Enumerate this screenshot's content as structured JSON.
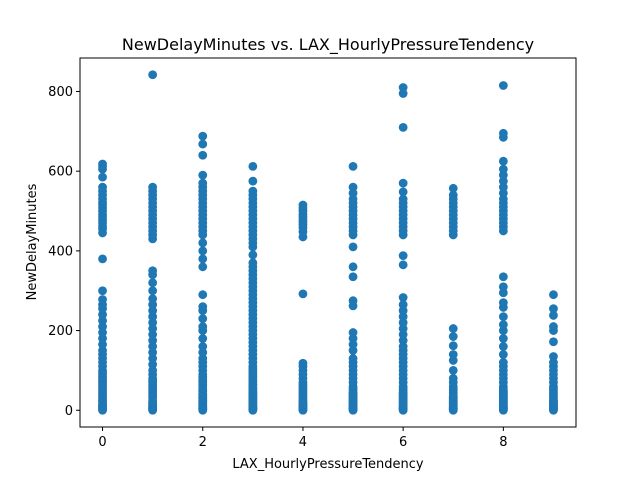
{
  "chart_data": {
    "type": "scatter",
    "title": "NewDelayMinutes vs. LAX_HourlyPressureTendency",
    "xlabel": "LAX_HourlyPressureTendency",
    "ylabel": "NewDelayMinutes",
    "xlim": [
      -0.45,
      9.45
    ],
    "ylim": [
      -42,
      884
    ],
    "xticks": [
      0,
      2,
      4,
      6,
      8
    ],
    "yticks": [
      0,
      200,
      400,
      600,
      800
    ],
    "grid": false,
    "marker_color": "#1f77b4",
    "x": [
      0,
      0,
      0,
      0,
      0,
      0,
      0,
      0,
      0,
      0,
      0,
      0,
      0,
      0,
      0,
      0,
      0,
      0,
      0,
      0,
      0,
      0,
      0,
      0,
      0,
      0,
      0,
      0,
      0,
      0,
      0,
      0,
      0,
      0,
      0,
      0,
      0,
      0,
      0,
      0,
      0,
      0,
      0,
      0,
      0,
      0,
      0,
      0,
      0,
      0,
      0,
      0,
      0,
      0,
      0,
      0,
      0,
      0,
      0,
      0,
      1,
      1,
      1,
      1,
      1,
      1,
      1,
      1,
      1,
      1,
      1,
      1,
      1,
      1,
      1,
      1,
      1,
      1,
      1,
      1,
      1,
      1,
      1,
      1,
      1,
      1,
      1,
      1,
      1,
      1,
      1,
      1,
      1,
      1,
      1,
      1,
      1,
      1,
      1,
      1,
      1,
      1,
      1,
      1,
      1,
      1,
      1,
      1,
      1,
      1,
      1,
      1,
      1,
      1,
      1,
      1,
      2,
      2,
      2,
      2,
      2,
      2,
      2,
      2,
      2,
      2,
      2,
      2,
      2,
      2,
      2,
      2,
      2,
      2,
      2,
      2,
      2,
      2,
      2,
      2,
      2,
      2,
      2,
      2,
      2,
      2,
      2,
      2,
      2,
      2,
      2,
      2,
      2,
      2,
      2,
      2,
      2,
      2,
      2,
      2,
      2,
      2,
      2,
      2,
      2,
      2,
      2,
      2,
      2,
      2,
      2,
      2,
      2,
      2,
      2,
      2,
      2,
      2,
      2,
      2,
      2,
      3,
      3,
      3,
      3,
      3,
      3,
      3,
      3,
      3,
      3,
      3,
      3,
      3,
      3,
      3,
      3,
      3,
      3,
      3,
      3,
      3,
      3,
      3,
      3,
      3,
      3,
      3,
      3,
      3,
      3,
      3,
      3,
      3,
      3,
      3,
      3,
      3,
      3,
      3,
      3,
      3,
      3,
      3,
      3,
      3,
      3,
      3,
      3,
      3,
      3,
      3,
      3,
      3,
      3,
      3,
      3,
      3,
      3,
      3,
      3,
      3,
      3,
      3,
      3,
      3,
      3,
      3,
      3,
      3,
      3,
      3,
      3,
      3,
      3,
      3,
      3,
      3,
      3,
      3,
      3,
      3,
      4,
      4,
      4,
      4,
      4,
      4,
      4,
      4,
      4,
      4,
      4,
      4,
      4,
      4,
      4,
      4,
      4,
      4,
      4,
      4,
      4,
      4,
      4,
      4,
      4,
      4,
      4,
      4,
      4,
      4,
      4,
      4,
      4,
      4,
      4,
      4,
      5,
      5,
      5,
      5,
      5,
      5,
      5,
      5,
      5,
      5,
      5,
      5,
      5,
      5,
      5,
      5,
      5,
      5,
      5,
      5,
      5,
      5,
      5,
      5,
      5,
      5,
      5,
      5,
      5,
      5,
      5,
      5,
      5,
      5,
      5,
      5,
      5,
      5,
      5,
      5,
      5,
      5,
      5,
      5,
      5,
      5,
      5,
      5,
      5,
      5,
      5,
      5,
      5,
      6,
      6,
      6,
      6,
      6,
      6,
      6,
      6,
      6,
      6,
      6,
      6,
      6,
      6,
      6,
      6,
      6,
      6,
      6,
      6,
      6,
      6,
      6,
      6,
      6,
      6,
      6,
      6,
      6,
      6,
      6,
      6,
      6,
      6,
      6,
      6,
      6,
      6,
      6,
      6,
      6,
      6,
      6,
      6,
      6,
      6,
      6,
      6,
      6,
      6,
      6,
      6,
      6,
      6,
      6,
      6,
      6,
      6,
      6,
      7,
      7,
      7,
      7,
      7,
      7,
      7,
      7,
      7,
      7,
      7,
      7,
      7,
      7,
      7,
      7,
      7,
      7,
      7,
      7,
      7,
      7,
      7,
      7,
      7,
      7,
      7,
      7,
      7,
      7,
      7,
      7,
      7,
      7,
      7,
      7,
      7,
      7,
      7,
      7,
      7,
      7,
      8,
      8,
      8,
      8,
      8,
      8,
      8,
      8,
      8,
      8,
      8,
      8,
      8,
      8,
      8,
      8,
      8,
      8,
      8,
      8,
      8,
      8,
      8,
      8,
      8,
      8,
      8,
      8,
      8,
      8,
      8,
      8,
      8,
      8,
      8,
      8,
      8,
      8,
      8,
      8,
      8,
      8,
      8,
      8,
      8,
      8,
      8,
      8,
      8,
      8,
      8,
      8,
      8,
      8,
      8,
      8,
      8,
      8,
      8,
      8,
      9,
      9,
      9,
      9,
      9,
      9,
      9,
      9,
      9,
      9,
      9,
      9,
      9,
      9,
      9,
      9,
      9,
      9,
      9,
      9,
      9,
      9,
      9,
      9,
      9,
      9,
      9,
      9,
      9,
      9,
      9,
      9,
      9
    ],
    "y": [
      0,
      5,
      10,
      15,
      20,
      25,
      30,
      35,
      40,
      45,
      50,
      55,
      60,
      65,
      70,
      75,
      80,
      85,
      90,
      95,
      100,
      110,
      120,
      130,
      140,
      150,
      165,
      180,
      195,
      210,
      225,
      240,
      255,
      265,
      278,
      445,
      455,
      462,
      470,
      478,
      485,
      492,
      500,
      508,
      515,
      522,
      530,
      540,
      550,
      560,
      585,
      605,
      612,
      618,
      380,
      300,
      25,
      12,
      8,
      3,
      0,
      5,
      10,
      15,
      20,
      30,
      40,
      50,
      60,
      70,
      80,
      90,
      100,
      115,
      130,
      145,
      160,
      175,
      190,
      205,
      220,
      235,
      250,
      265,
      280,
      300,
      320,
      340,
      350,
      430,
      440,
      450,
      460,
      470,
      480,
      490,
      500,
      510,
      520,
      530,
      540,
      550,
      560,
      842,
      2,
      4,
      6,
      8,
      12,
      18,
      22,
      35,
      45,
      55,
      65,
      75,
      0,
      5,
      10,
      15,
      20,
      25,
      30,
      35,
      40,
      50,
      60,
      70,
      80,
      90,
      100,
      110,
      120,
      130,
      145,
      160,
      180,
      200,
      210,
      230,
      250,
      260,
      290,
      360,
      380,
      400,
      420,
      440,
      450,
      460,
      470,
      480,
      490,
      500,
      510,
      520,
      530,
      540,
      550,
      560,
      570,
      590,
      640,
      668,
      688,
      2,
      4,
      6,
      8,
      12,
      18,
      22,
      28,
      32,
      38,
      42,
      48,
      55,
      65,
      75,
      85,
      0,
      5,
      10,
      15,
      20,
      25,
      30,
      35,
      40,
      45,
      50,
      55,
      60,
      65,
      70,
      80,
      90,
      100,
      110,
      120,
      130,
      140,
      150,
      160,
      170,
      180,
      190,
      200,
      210,
      220,
      230,
      240,
      250,
      260,
      270,
      280,
      290,
      300,
      310,
      320,
      330,
      340,
      350,
      360,
      370,
      390,
      410,
      420,
      430,
      440,
      450,
      460,
      470,
      480,
      490,
      500,
      510,
      520,
      530,
      540,
      550,
      575,
      612,
      2,
      4,
      6,
      8,
      12,
      18,
      22,
      28,
      32,
      38,
      42,
      48,
      55,
      65,
      75,
      85,
      95,
      105,
      0,
      5,
      10,
      15,
      20,
      25,
      30,
      35,
      40,
      45,
      50,
      55,
      60,
      65,
      70,
      80,
      90,
      100,
      110,
      118,
      292,
      435,
      448,
      458,
      465,
      472,
      478,
      485,
      492,
      500,
      508,
      515,
      2,
      8,
      12,
      18,
      0,
      5,
      10,
      15,
      20,
      25,
      30,
      35,
      40,
      45,
      50,
      55,
      60,
      70,
      80,
      90,
      100,
      110,
      120,
      130,
      150,
      165,
      180,
      195,
      262,
      275,
      335,
      360,
      410,
      440,
      450,
      460,
      470,
      480,
      490,
      500,
      510,
      520,
      530,
      545,
      560,
      612,
      2,
      4,
      6,
      8,
      12,
      18,
      22,
      28,
      32,
      38,
      42,
      0,
      5,
      10,
      15,
      20,
      25,
      30,
      35,
      40,
      45,
      50,
      55,
      60,
      70,
      80,
      90,
      100,
      110,
      120,
      130,
      140,
      150,
      160,
      175,
      190,
      205,
      220,
      235,
      250,
      265,
      283,
      365,
      388,
      440,
      450,
      460,
      470,
      480,
      490,
      500,
      510,
      520,
      530,
      548,
      570,
      710,
      795,
      810,
      2,
      4,
      6,
      8,
      12,
      18,
      22,
      28,
      32,
      38,
      42,
      0,
      5,
      10,
      15,
      20,
      25,
      30,
      35,
      40,
      45,
      50,
      55,
      60,
      70,
      80,
      100,
      125,
      140,
      162,
      185,
      205,
      440,
      450,
      460,
      470,
      480,
      490,
      500,
      510,
      520,
      530,
      540,
      557,
      2,
      4,
      6,
      8,
      12,
      18,
      22,
      28,
      32,
      0,
      5,
      10,
      15,
      20,
      25,
      30,
      35,
      40,
      45,
      50,
      55,
      60,
      70,
      80,
      90,
      100,
      110,
      120,
      140,
      160,
      180,
      200,
      215,
      235,
      258,
      270,
      295,
      310,
      335,
      450,
      460,
      470,
      480,
      490,
      500,
      510,
      520,
      530,
      545,
      560,
      575,
      590,
      605,
      625,
      685,
      695,
      815,
      2,
      4,
      6,
      8,
      12,
      18,
      22,
      28,
      32,
      38,
      42,
      48,
      0,
      5,
      10,
      15,
      20,
      25,
      30,
      35,
      40,
      45,
      50,
      55,
      60,
      70,
      80,
      90,
      100,
      110,
      120,
      135,
      172,
      200,
      210,
      238,
      255,
      290,
      2,
      4,
      6,
      8,
      12,
      18,
      22
    ]
  }
}
